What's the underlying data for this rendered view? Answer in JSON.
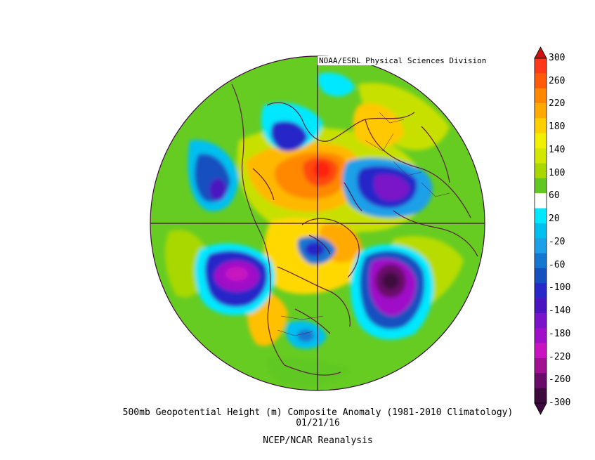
{
  "credit": "NOAA/ESRL Physical Sciences Division",
  "title": "500mb Geopotential Height (m) Composite Anomaly (1981-2010 Climatology)",
  "date": "01/21/16",
  "source": "NCEP/NCAR Reanalysis",
  "colorbar": {
    "labels": [
      "300",
      "260",
      "220",
      "180",
      "140",
      "100",
      "60",
      "20",
      "-20",
      "-60",
      "-100",
      "-140",
      "-180",
      "-220",
      "-260",
      "-300"
    ],
    "colors": [
      "#ff3a1a",
      "#ff5a0a",
      "#ff8800",
      "#ffaa00",
      "#ffd000",
      "#f0f000",
      "#d2e800",
      "#a8d800",
      "#60c820",
      "#ffffff",
      "#00e8ff",
      "#00c0f0",
      "#1ea0e8",
      "#1478d0",
      "#1450c0",
      "#2828c8",
      "#4a14c0",
      "#7a14c8",
      "#a010c8",
      "#c814c0",
      "#a01090",
      "#6a0a6a",
      "#3c0a3c"
    ],
    "arrow_top": "#d01010",
    "arrow_bottom": "#3c0a3c"
  }
}
